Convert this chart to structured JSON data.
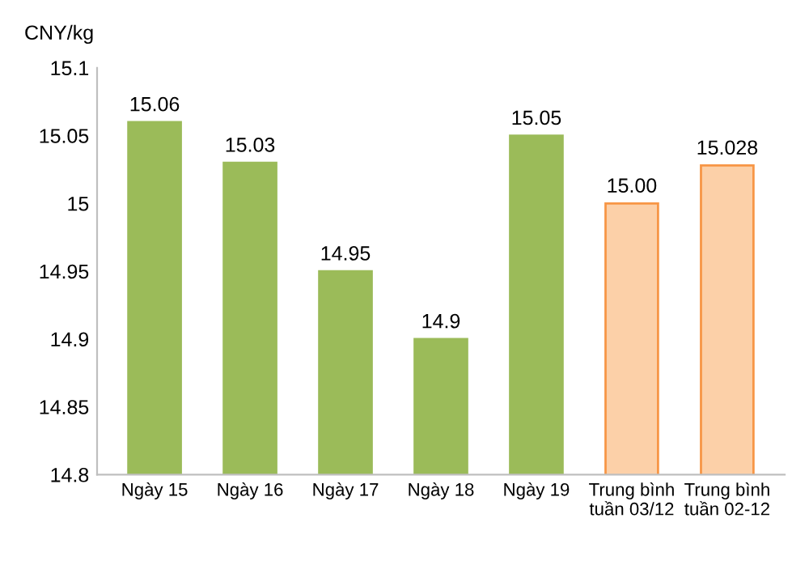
{
  "chart_data": {
    "type": "bar",
    "ylabel": "CNY/kg",
    "categories": [
      "Ngày 15",
      "Ngày 16",
      "Ngày 17",
      "Ngày 18",
      "Ngày 19",
      "Trung bình\ntuần 03/12",
      "Trung bình\ntuần 02-12"
    ],
    "values": [
      15.06,
      15.03,
      14.95,
      14.9,
      15.05,
      15.0,
      15.028
    ],
    "colors": [
      "#9bbb59",
      "#9bbb59",
      "#9bbb59",
      "#9bbb59",
      "#9bbb59",
      "#fcd0a8",
      "#fcd0a8"
    ],
    "value_labels": [
      "15.06",
      "15.03",
      "14.95",
      "14.9",
      "15.05",
      "15.00",
      "15.028"
    ],
    "ylim": [
      14.8,
      15.1
    ],
    "yticks": [
      14.8,
      14.85,
      14.9,
      14.95,
      15,
      15.05,
      15.1
    ],
    "grid": false,
    "legend": false
  }
}
